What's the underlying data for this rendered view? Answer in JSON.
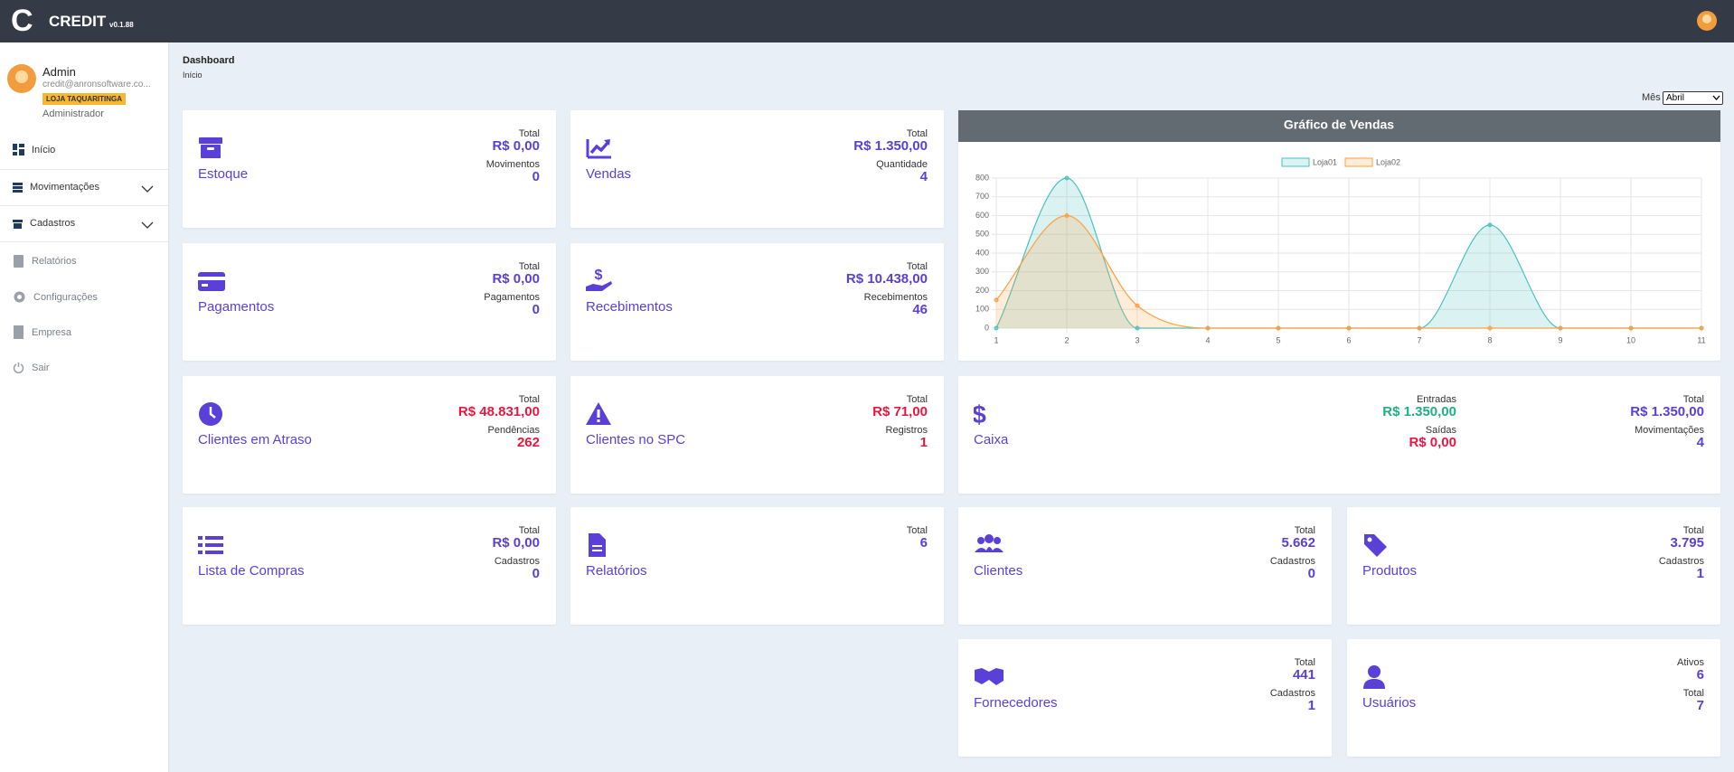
{
  "header": {
    "logo": "C",
    "brand": "CREDIT",
    "version": "v0.1.88"
  },
  "sidebar": {
    "user": {
      "name": "Admin",
      "email": "credit@anronsoftware.co...",
      "store": "LOJA TAQUARITINGA",
      "role": "Administrador"
    },
    "menu": [
      "Início",
      "Movimentações",
      "Cadastros",
      "Relatórios",
      "Configurações",
      "Empresa",
      "Sair"
    ]
  },
  "breadcrumb": {
    "title": "Dashboard",
    "current": "Início"
  },
  "month_filter": {
    "label": "Mês",
    "selected": "Abril"
  },
  "cards": [
    {
      "title": "Estoque",
      "stats": [
        {
          "label": "Total",
          "value": "R$ 0,00"
        },
        {
          "label": "Movimentos",
          "value": "0"
        }
      ]
    },
    {
      "title": "Vendas",
      "stats": [
        {
          "label": "Total",
          "value": "R$ 1.350,00"
        },
        {
          "label": "Quantidade",
          "value": "4"
        }
      ]
    },
    {
      "title": "Pagamentos",
      "stats": [
        {
          "label": "Total",
          "value": "R$ 0,00"
        },
        {
          "label": "Pagamentos",
          "value": "0"
        }
      ]
    },
    {
      "title": "Recebimentos",
      "stats": [
        {
          "label": "Total",
          "value": "R$ 10.438,00"
        },
        {
          "label": "Recebimentos",
          "value": "46"
        }
      ]
    },
    {
      "title": "Clientes em Atraso",
      "stats": [
        {
          "label": "Total",
          "value": "R$ 48.831,00",
          "color": "#e8173f"
        },
        {
          "label": "Pendências",
          "value": "262",
          "color": "#e8173f"
        }
      ]
    },
    {
      "title": "Clientes no SPC",
      "stats": [
        {
          "label": "Total",
          "value": "R$ 71,00",
          "color": "#e8173f"
        },
        {
          "label": "Registros",
          "value": "1",
          "color": "#e8173f"
        }
      ]
    },
    {
      "title": "Caixa",
      "stats": [
        {
          "label": "Total",
          "value": "R$ 1.350,00"
        },
        {
          "label": "Movimentações",
          "value": "4"
        }
      ],
      "extra_stats": [
        {
          "label": "Entradas",
          "value": "R$ 1.350,00",
          "color": "#1fae87"
        },
        {
          "label": "Saídas",
          "value": "R$ 0,00",
          "color": "#e8173f"
        }
      ]
    },
    {
      "title": "Lista de Compras",
      "stats": [
        {
          "label": "Total",
          "value": "R$ 0,00"
        },
        {
          "label": "Cadastros",
          "value": "0"
        }
      ]
    },
    {
      "title": "Relatórios",
      "stats": [
        {
          "label": "Total",
          "value": "6"
        }
      ]
    },
    {
      "title": "Clientes",
      "stats": [
        {
          "label": "Total",
          "value": "5.662"
        },
        {
          "label": "Cadastros",
          "value": "0"
        }
      ]
    },
    {
      "title": "Produtos",
      "stats": [
        {
          "label": "Total",
          "value": "3.795"
        },
        {
          "label": "Cadastros",
          "value": "1"
        }
      ]
    },
    {
      "title": "Fornecedores",
      "stats": [
        {
          "label": "Total",
          "value": "441"
        },
        {
          "label": "Cadastros",
          "value": "1"
        }
      ]
    },
    {
      "title": "Usuários",
      "stats": [
        {
          "label": "Ativos",
          "value": "6"
        },
        {
          "label": "Total",
          "value": "7"
        }
      ]
    }
  ],
  "chart_data": {
    "type": "line",
    "title": "Gráfico de Vendas",
    "x": [
      1,
      2,
      3,
      4,
      5,
      6,
      7,
      8,
      9,
      10,
      11
    ],
    "series": [
      {
        "name": "Loja01",
        "color": "#4bc0c0",
        "values": [
          0,
          800,
          0,
          0,
          0,
          0,
          0,
          550,
          0,
          0,
          0
        ]
      },
      {
        "name": "Loja02",
        "color": "#ff9f40",
        "values": [
          150,
          600,
          120,
          0,
          0,
          0,
          0,
          0,
          0,
          0,
          0
        ]
      }
    ],
    "xlim": [
      1,
      11
    ],
    "xticks": [
      1,
      2,
      3,
      4,
      5,
      6,
      7,
      8,
      9,
      10,
      11
    ],
    "ylim": [
      0,
      800
    ],
    "yticks": [
      0,
      100,
      200,
      300,
      400,
      500,
      600,
      700,
      800
    ],
    "grid": true,
    "legend": "top"
  }
}
